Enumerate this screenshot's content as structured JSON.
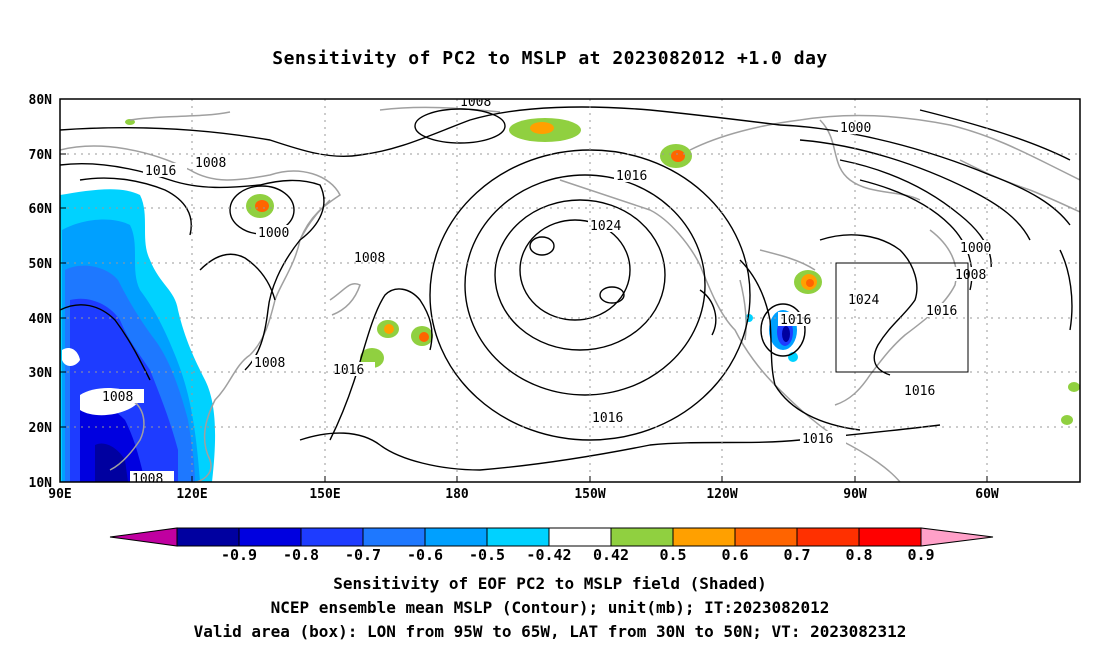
{
  "title": "Sensitivity of PC2 to MSLP at 2023082012 +1.0 day",
  "axes": {
    "lat_labels": [
      "80N",
      "70N",
      "60N",
      "50N",
      "40N",
      "30N",
      "20N",
      "10N"
    ],
    "lon_labels": [
      "90E",
      "120E",
      "150E",
      "180",
      "150W",
      "120W",
      "90W",
      "60W"
    ]
  },
  "contour_labels": [
    "1008",
    "1016",
    "1008",
    "1000",
    "1008",
    "1024",
    "1016",
    "1016",
    "1000",
    "1000",
    "1008",
    "1024",
    "1016",
    "1016",
    "1016",
    "1016",
    "1008",
    "1008",
    "1008",
    "1016"
  ],
  "colorbar": {
    "labels": [
      "-0.9",
      "-0.8",
      "-0.7",
      "-0.6",
      "-0.5",
      "-0.42",
      "0.42",
      "0.5",
      "0.6",
      "0.7",
      "0.8",
      "0.9"
    ],
    "colors": [
      "#0000a0",
      "#0000e0",
      "#1e3cff",
      "#1e78ff",
      "#00a0ff",
      "#00d2ff",
      "#ffffff",
      "#90d040",
      "#ffa000",
      "#ff6400",
      "#ff3000",
      "#ff0000"
    ],
    "end_low": "#c000a0",
    "end_high": "#ffa0c8"
  },
  "valid_area": {
    "lon_from": "95W",
    "lon_to": "65W",
    "lat_from": "30N",
    "lat_to": "50N"
  },
  "captions": {
    "line1": "Sensitivity of EOF PC2 to MSLP field (Shaded)",
    "line2": "NCEP ensemble mean MSLP (Contour); unit(mb); IT:2023082012",
    "line3": "Valid area (box): LON from 95W to 65W, LAT from 30N to 50N; VT: 2023082312"
  }
}
